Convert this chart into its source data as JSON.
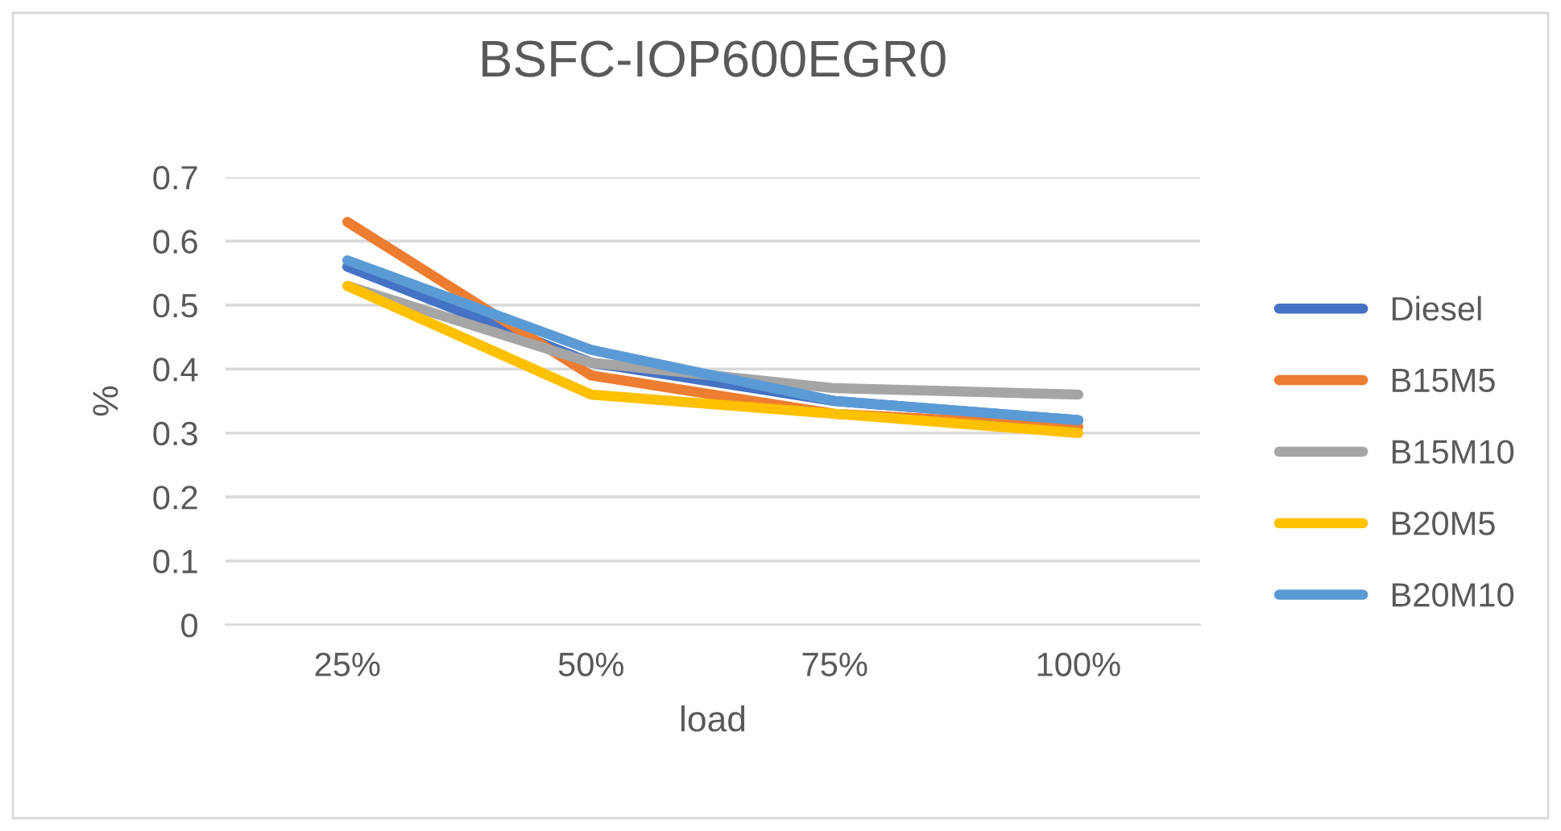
{
  "chart_data": {
    "type": "line",
    "title": "BSFC-IOP600EGR0",
    "xlabel": "load",
    "ylabel": "%",
    "categories": [
      "25%",
      "50%",
      "75%",
      "100%"
    ],
    "series": [
      {
        "name": "Diesel",
        "color": "#4472c4",
        "values": [
          0.56,
          0.41,
          0.35,
          0.32
        ]
      },
      {
        "name": "B15M5",
        "color": "#ed7d31",
        "values": [
          0.63,
          0.39,
          0.33,
          0.31
        ]
      },
      {
        "name": "B15M10",
        "color": "#a5a5a5",
        "values": [
          0.53,
          0.41,
          0.37,
          0.36
        ]
      },
      {
        "name": "B20M5",
        "color": "#ffc000",
        "values": [
          0.53,
          0.36,
          0.33,
          0.3
        ]
      },
      {
        "name": "B20M10",
        "color": "#5b9bd5",
        "values": [
          0.57,
          0.43,
          0.35,
          0.32
        ]
      }
    ],
    "ylim": [
      0,
      0.7
    ],
    "yticks": [
      {
        "value": 0,
        "label": "0"
      },
      0.1,
      0.2,
      0.3,
      0.4,
      0.5,
      0.6,
      0.7
    ],
    "grid": "y",
    "legend": "right",
    "marker": "none",
    "line_style": "solid"
  }
}
